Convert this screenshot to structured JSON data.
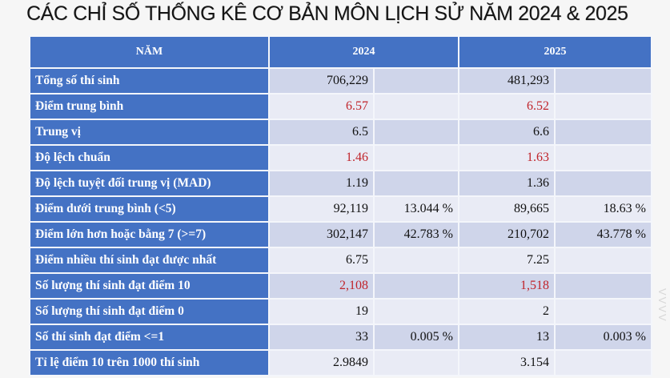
{
  "title": "CÁC CHỈ SỐ THỐNG KÊ CƠ BẢN MÔN LỊCH SỬ NĂM 2024 & 2025",
  "colors": {
    "header_bg": "#4472c4",
    "header_text": "#ffffff",
    "row_dark": "#cfd5ea",
    "row_light": "#e9ebf5",
    "highlight_text": "#c0242b",
    "page_bg": "#f6f6f6"
  },
  "table": {
    "header": {
      "label": "NĂM",
      "year_2024": "2024",
      "year_2025": "2025"
    },
    "rows": [
      {
        "label": "Tổng số thí sinh",
        "v2024": "706,229",
        "p2024": "",
        "v2025": "481,293",
        "p2025": "",
        "highlight": false
      },
      {
        "label": "Điểm trung bình",
        "v2024": "6.57",
        "p2024": "",
        "v2025": "6.52",
        "p2025": "",
        "highlight": true
      },
      {
        "label": "Trung vị",
        "v2024": "6.5",
        "p2024": "",
        "v2025": "6.6",
        "p2025": "",
        "highlight": false
      },
      {
        "label": "Độ lệch chuẩn",
        "v2024": "1.46",
        "p2024": "",
        "v2025": "1.63",
        "p2025": "",
        "highlight": true
      },
      {
        "label": "Độ lệch tuyệt đối trung vị (MAD)",
        "v2024": "1.19",
        "p2024": "",
        "v2025": "1.36",
        "p2025": "",
        "highlight": false
      },
      {
        "label": "Điểm dưới trung bình (<5)",
        "v2024": "92,119",
        "p2024": "13.044 %",
        "v2025": "89,665",
        "p2025": "18.63 %",
        "highlight": false
      },
      {
        "label": "Điểm lớn hơn hoặc bằng 7 (>=7)",
        "v2024": "302,147",
        "p2024": "42.783 %",
        "v2025": "210,702",
        "p2025": "43.778 %",
        "highlight": false
      },
      {
        "label": "Điểm nhiều thí sinh đạt được nhất",
        "v2024": "6.75",
        "p2024": "",
        "v2025": "7.25",
        "p2025": "",
        "highlight": false
      },
      {
        "label": "Số lượng thí sinh đạt điểm 10",
        "v2024": "2,108",
        "p2024": "",
        "v2025": "1,518",
        "p2025": "",
        "highlight": true
      },
      {
        "label": "Số lượng thí sinh đạt điểm 0",
        "v2024": "19",
        "p2024": "",
        "v2025": "2",
        "p2025": "",
        "highlight": false
      },
      {
        "label": "Số thí sinh đạt điểm <=1",
        "v2024": "33",
        "p2024": "0.005 %",
        "v2025": "13",
        "p2025": "0.003 %",
        "highlight": false
      },
      {
        "label": "Tỉ lệ điểm 10 trên 1000 thí sinh",
        "v2024": "2.9849",
        "p2024": "",
        "v2025": "3.154",
        "p2025": "",
        "highlight": false
      }
    ]
  },
  "watermark": "VVVV"
}
